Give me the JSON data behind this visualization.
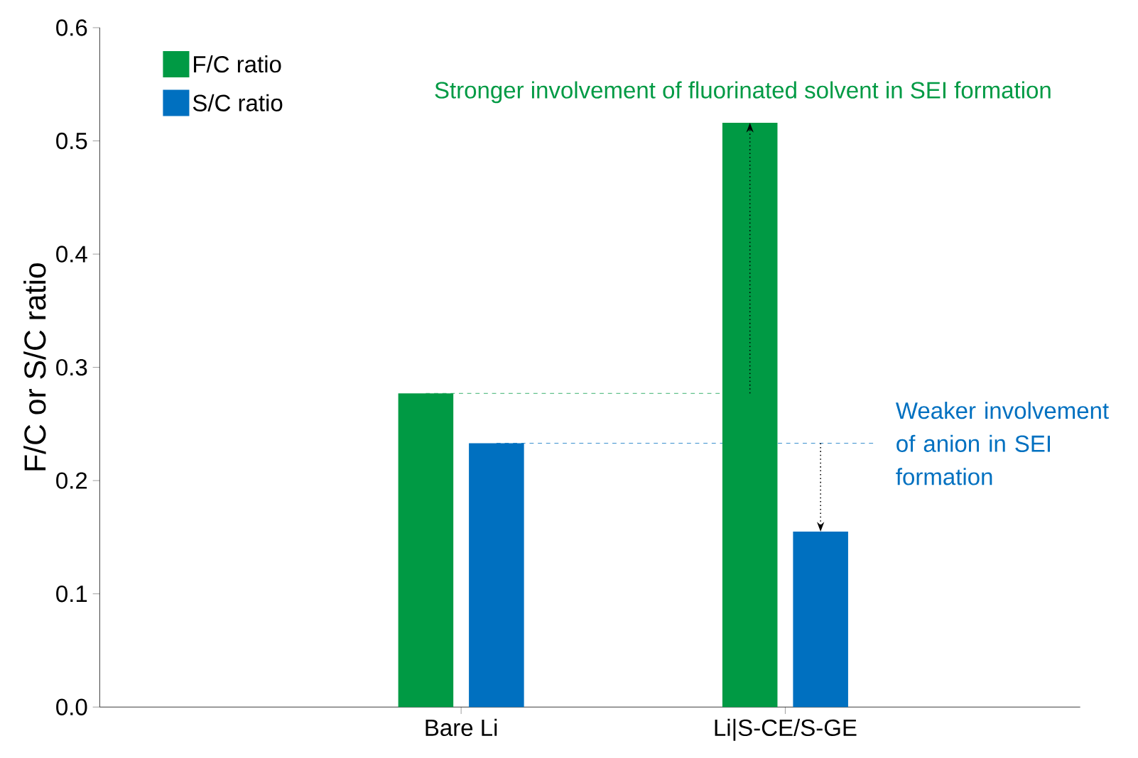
{
  "chart_data": {
    "type": "bar",
    "ylabel": "F/C or S/C ratio",
    "categories": [
      "Bare Li",
      "Li|S-CE/S-GE"
    ],
    "series": [
      {
        "name": "F/C ratio",
        "color": "#009a44",
        "values": [
          0.277,
          0.516
        ]
      },
      {
        "name": "S/C ratio",
        "color": "#0070c0",
        "values": [
          0.233,
          0.155
        ]
      }
    ],
    "ylim": [
      0,
      0.6
    ],
    "yticks": [
      {
        "value": 0,
        "label": "0.0"
      },
      {
        "value": 0.1,
        "label": "0.1"
      },
      {
        "value": 0.2,
        "label": "0.2"
      },
      {
        "value": 0.3,
        "label": "0.3"
      },
      {
        "value": 0.4,
        "label": "0.4"
      },
      {
        "value": 0.5,
        "label": "0.5"
      },
      {
        "value": 0.6,
        "label": "0.6"
      }
    ],
    "ref_lines": [
      {
        "axis": "y",
        "value": 0.277,
        "color": "#009a44",
        "line_style": "dashed"
      },
      {
        "axis": "y",
        "value": 0.233,
        "color": "#0070c0",
        "line_style": "dashed"
      }
    ],
    "annotations": [
      "Stronger involvement of fluorinated solvent in SEI formation",
      "Weaker involvement\nof anion in SEI formation"
    ],
    "legend": "top left",
    "grid": false
  }
}
